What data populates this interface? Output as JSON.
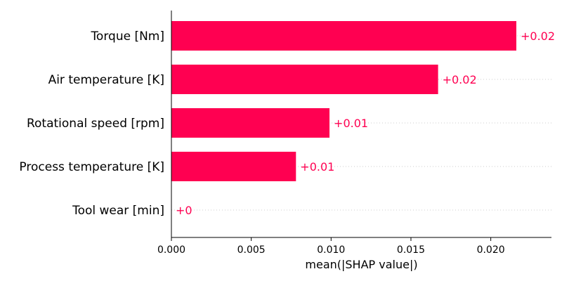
{
  "chart_data": {
    "type": "bar",
    "orientation": "horizontal",
    "categories": [
      "Torque [Nm]",
      "Air temperature [K]",
      "Rotational speed [rpm]",
      "Process temperature [K]",
      "Tool wear [min]"
    ],
    "values": [
      0.0216,
      0.0167,
      0.0099,
      0.0078,
      0.0
    ],
    "data_labels": [
      "+0.02",
      "+0.02",
      "+0.01",
      "+0.01",
      "+0"
    ],
    "xlabel": "mean(|SHAP value|)",
    "ylabel": "",
    "xlim": [
      0,
      0.0238
    ],
    "xticks": [
      "0.000",
      "0.005",
      "0.010",
      "0.015",
      "0.020"
    ],
    "grid": "dotted horizontal guide lines per bar",
    "colors": {
      "bar": "#ff0051",
      "label": "#ff0051",
      "axis": "#000000",
      "guide": "#cccccc"
    }
  }
}
